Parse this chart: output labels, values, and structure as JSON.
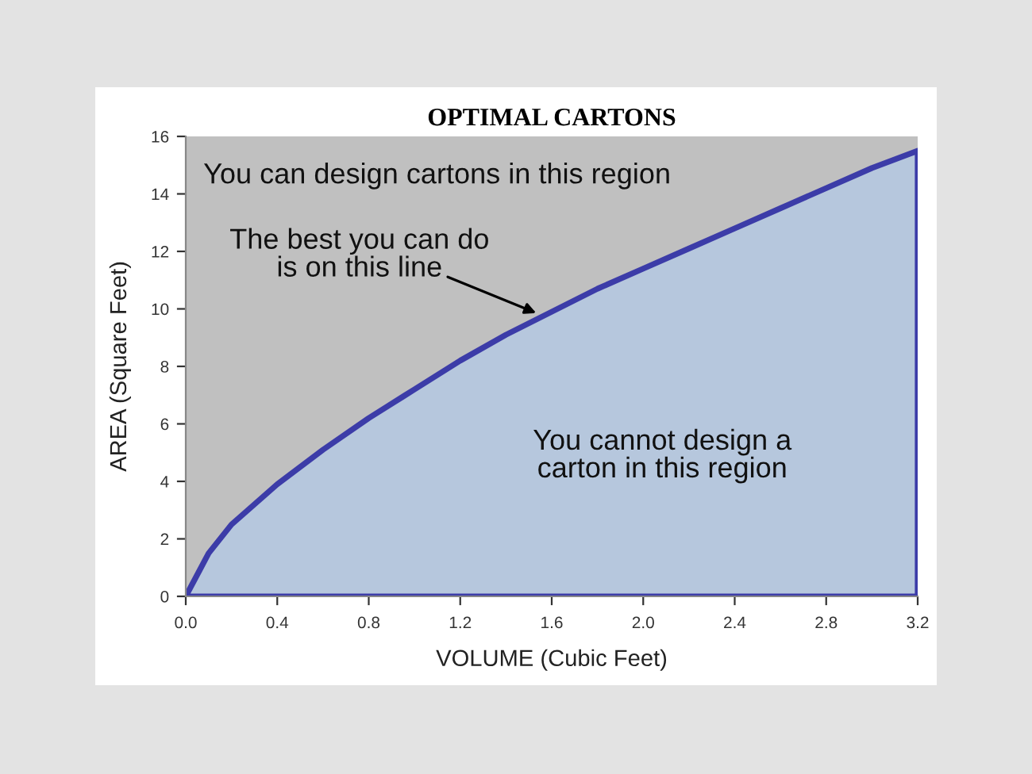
{
  "chart_data": {
    "type": "area",
    "title": "OPTIMAL CARTONS",
    "xlabel": "VOLUME (Cubic Feet)",
    "ylabel": "AREA (Square Feet)",
    "series": [
      {
        "color": "#3c3ca8",
        "x": [
          0,
          0.1,
          0.2,
          0.4,
          0.6,
          0.8,
          1.0,
          1.2,
          1.4,
          1.6,
          1.8,
          2.0,
          2.2,
          2.4,
          2.6,
          2.8,
          3.0,
          3.2
        ],
        "values": [
          0,
          1.5,
          2.5,
          3.9,
          5.1,
          6.2,
          7.2,
          8.2,
          9.1,
          9.9,
          10.7,
          11.4,
          12.1,
          12.8,
          13.5,
          14.2,
          14.9,
          15.5
        ]
      }
    ],
    "xlim": [
      0,
      3.2
    ],
    "ylim": [
      0,
      16
    ],
    "xticks": [
      {
        "value": 0,
        "label": "0.0"
      },
      {
        "value": 0.4,
        "label": "0.4"
      },
      {
        "value": 0.8,
        "label": "0.8"
      },
      {
        "value": 1.2,
        "label": "1.2"
      },
      {
        "value": 1.6,
        "label": "1.6"
      },
      {
        "value": 2.0,
        "label": "2.0"
      },
      {
        "value": 2.4,
        "label": "2.4"
      },
      {
        "value": 2.8,
        "label": "2.8"
      },
      {
        "value": 3.2,
        "label": "3.2"
      }
    ],
    "yticks": [
      0,
      2,
      4,
      6,
      8,
      10,
      12,
      14,
      16
    ],
    "grid": false,
    "annotations": [
      "You can design cartons in this region",
      {
        "text": "The best you can do\nis on this line",
        "x": 1.55,
        "y": 9.8
      },
      "You cannot design a\ncarton in this region"
    ]
  }
}
